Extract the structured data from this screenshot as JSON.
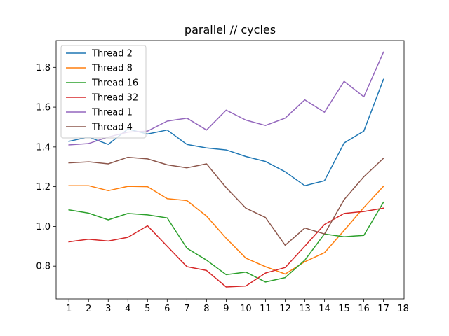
{
  "chart_data": {
    "type": "line",
    "title": "parallel // cycles",
    "xlabel": "",
    "ylabel": "",
    "x": [
      1,
      2,
      3,
      4,
      5,
      6,
      7,
      8,
      9,
      10,
      11,
      12,
      13,
      14,
      15,
      16,
      17
    ],
    "xticks": [
      1,
      2,
      3,
      4,
      5,
      6,
      7,
      8,
      9,
      10,
      11,
      12,
      13,
      14,
      15,
      16,
      17,
      18
    ],
    "yticks": [
      0.8,
      1.0,
      1.2,
      1.4,
      1.6,
      1.8
    ],
    "ytick_labels": [
      "0.8",
      "1.0",
      "1.2",
      "1.4",
      "1.6",
      "1.8"
    ],
    "xlim": [
      0.35,
      18.05
    ],
    "ylim": [
      0.635,
      1.935
    ],
    "grid": false,
    "legend_position": "upper-left",
    "series": [
      {
        "name": "Thread 2",
        "color": "#1f77b4",
        "values": [
          1.428,
          1.45,
          1.413,
          1.49,
          1.465,
          1.485,
          1.413,
          1.395,
          1.385,
          1.352,
          1.327,
          1.275,
          1.205,
          1.23,
          1.42,
          1.48,
          1.74
        ]
      },
      {
        "name": "Thread 8",
        "color": "#ff7f0e",
        "values": [
          1.205,
          1.205,
          1.18,
          1.202,
          1.2,
          1.14,
          1.13,
          1.052,
          0.94,
          0.84,
          0.797,
          0.76,
          0.822,
          0.867,
          0.98,
          1.095,
          1.202
        ]
      },
      {
        "name": "Thread 16",
        "color": "#2ca02c",
        "values": [
          1.083,
          1.067,
          1.033,
          1.065,
          1.058,
          1.043,
          0.89,
          0.83,
          0.757,
          0.77,
          0.72,
          0.742,
          0.83,
          0.962,
          0.948,
          0.955,
          1.122
        ]
      },
      {
        "name": "Thread 32",
        "color": "#d62728",
        "values": [
          0.922,
          0.935,
          0.926,
          0.945,
          1.003,
          0.9,
          0.797,
          0.778,
          0.695,
          0.7,
          0.765,
          0.793,
          0.9,
          1.01,
          1.065,
          1.075,
          1.092
        ]
      },
      {
        "name": "Thread 1",
        "color": "#9467bd",
        "values": [
          1.41,
          1.417,
          1.45,
          1.475,
          1.48,
          1.53,
          1.545,
          1.485,
          1.585,
          1.535,
          1.508,
          1.545,
          1.637,
          1.575,
          1.73,
          1.652,
          1.877
        ]
      },
      {
        "name": "Thread 4",
        "color": "#8c564b",
        "values": [
          1.32,
          1.325,
          1.315,
          1.348,
          1.34,
          1.31,
          1.295,
          1.315,
          1.195,
          1.092,
          1.045,
          0.905,
          0.992,
          0.962,
          1.135,
          1.25,
          1.343
        ]
      }
    ]
  }
}
